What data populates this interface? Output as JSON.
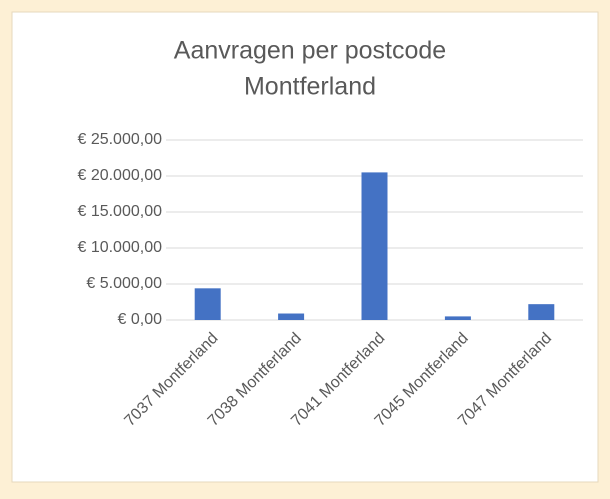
{
  "chart_data": {
    "type": "bar",
    "title": [
      "Aanvragen per postcode",
      "Montferland"
    ],
    "categories": [
      "7037 Montferland",
      "7038 Montferland",
      "7041 Montferland",
      "7045 Montferland",
      "7047 Montferland"
    ],
    "values": [
      4400,
      900,
      20500,
      500,
      2200
    ],
    "color": "#4472c4",
    "ylim": [
      0,
      25000
    ],
    "yticks": [
      {
        "value": 0,
        "label": "€ 0,00"
      },
      {
        "value": 5000,
        "label": "€ 5.000,00"
      },
      {
        "value": 10000,
        "label": "€ 10.000,00"
      },
      {
        "value": 15000,
        "label": "€ 15.000,00"
      },
      {
        "value": 20000,
        "label": "€ 20.000,00"
      },
      {
        "value": 25000,
        "label": "€ 25.000,00"
      }
    ],
    "grid": true
  }
}
